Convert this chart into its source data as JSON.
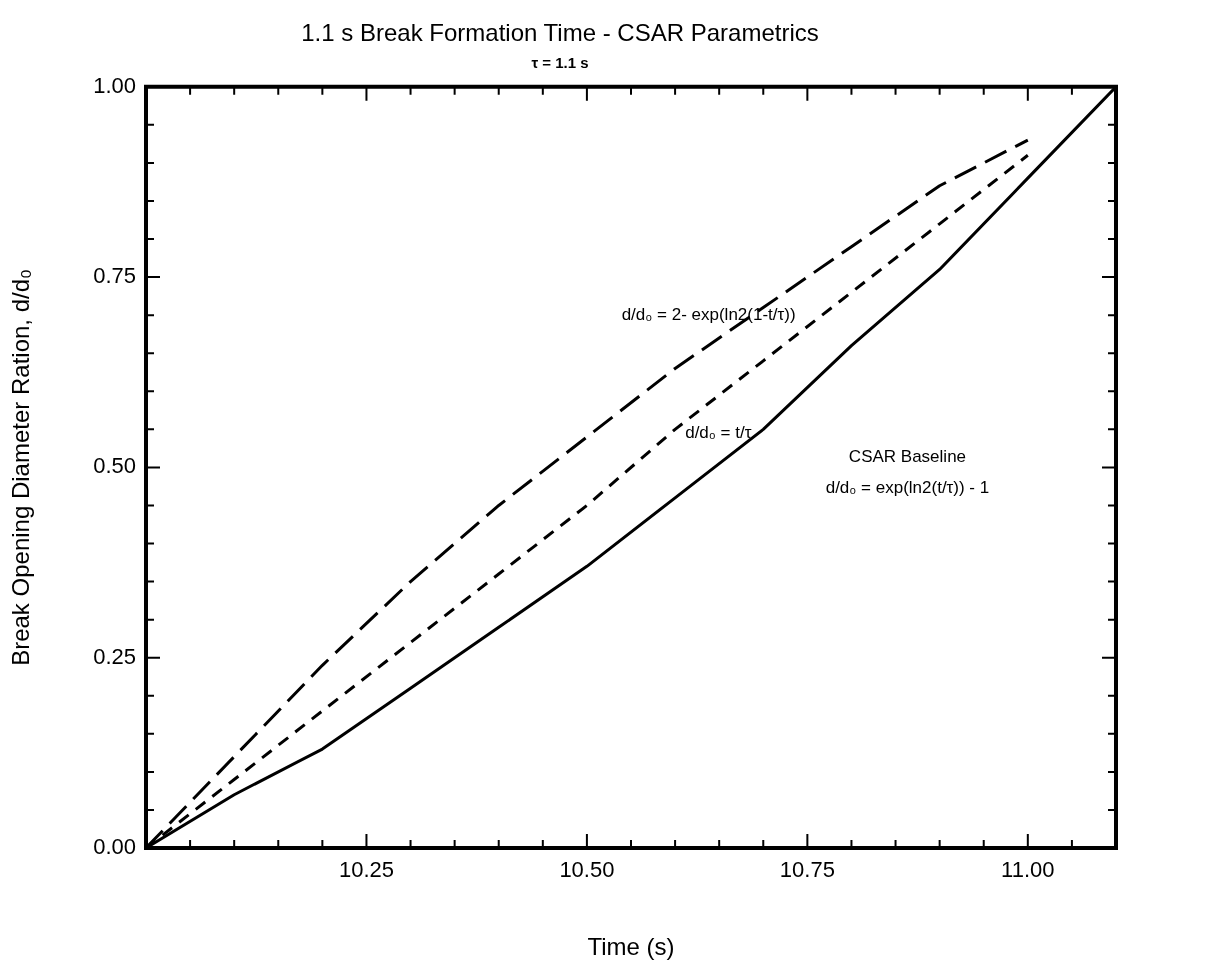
{
  "chart_data": {
    "type": "line",
    "title": "1.1 s Break Formation Time - CSAR Parametrics",
    "subtitle": "τ = 1.1 s",
    "xlabel": "Time (s)",
    "ylabel": "Break Opening Diameter Ration, d/d₀",
    "legend": false,
    "grid": false,
    "marker": "none",
    "series": [
      {
        "color": "#000000",
        "line_style": "dashed",
        "x": [
          10.0,
          10.1,
          10.2,
          10.3,
          10.4,
          10.5,
          10.6,
          10.7,
          10.8,
          10.9,
          11.0
        ],
        "values": [
          0,
          0.12,
          0.24,
          0.35,
          0.45,
          0.54,
          0.63,
          0.71,
          0.79,
          0.87,
          0.93
        ]
      },
      {
        "color": "#000000",
        "line_style": "dashed",
        "x": [
          10.0,
          10.1,
          10.2,
          10.3,
          10.4,
          10.5,
          10.6,
          10.7,
          10.8,
          10.9,
          11.0
        ],
        "values": [
          0,
          0.09,
          0.18,
          0.27,
          0.36,
          0.45,
          0.55,
          0.64,
          0.73,
          0.82,
          0.91
        ]
      },
      {
        "color": "#000000",
        "line_style": "solid",
        "x": [
          10.0,
          10.1,
          10.2,
          10.3,
          10.4,
          10.5,
          10.6,
          10.7,
          10.8,
          10.9,
          11.0,
          11.1
        ],
        "values": [
          0,
          0.07,
          0.13,
          0.21,
          0.29,
          0.37,
          0.46,
          0.55,
          0.66,
          0.76,
          0.88,
          1.0
        ]
      }
    ],
    "xlim": [
      10.0,
      11.1
    ],
    "xticks": [
      {
        "value": 10.0,
        "label": null
      },
      {
        "value": 10.05,
        "label": null
      },
      {
        "value": 10.1,
        "label": null
      },
      {
        "value": 10.15,
        "label": null
      },
      {
        "value": 10.2,
        "label": null
      },
      {
        "value": 10.25,
        "label": "10.25"
      },
      {
        "value": 10.3,
        "label": null
      },
      {
        "value": 10.35,
        "label": null
      },
      {
        "value": 10.4,
        "label": null
      },
      {
        "value": 10.45,
        "label": null
      },
      {
        "value": 10.5,
        "label": "10.50"
      },
      {
        "value": 10.55,
        "label": null
      },
      {
        "value": 10.6,
        "label": null
      },
      {
        "value": 10.65,
        "label": null
      },
      {
        "value": 10.7,
        "label": null
      },
      {
        "value": 10.75,
        "label": "10.75"
      },
      {
        "value": 10.8,
        "label": null
      },
      {
        "value": 10.85,
        "label": null
      },
      {
        "value": 10.9,
        "label": null
      },
      {
        "value": 10.95,
        "label": null
      },
      {
        "value": 11.0,
        "label": "11.00"
      },
      {
        "value": 11.05,
        "label": null
      },
      {
        "value": 11.1,
        "label": null
      }
    ],
    "ylim": [
      0,
      1
    ],
    "yticks": [
      {
        "value": 0,
        "label": "0.00"
      },
      {
        "value": 0.05,
        "label": null
      },
      {
        "value": 0.1,
        "label": null
      },
      {
        "value": 0.15,
        "label": null
      },
      {
        "value": 0.2,
        "label": null
      },
      {
        "value": 0.25,
        "label": "0.25"
      },
      {
        "value": 0.3,
        "label": null
      },
      {
        "value": 0.35,
        "label": null
      },
      {
        "value": 0.4,
        "label": null
      },
      {
        "value": 0.45,
        "label": null
      },
      {
        "value": 0.5,
        "label": "0.50"
      },
      {
        "value": 0.55,
        "label": null
      },
      {
        "value": 0.6,
        "label": null
      },
      {
        "value": 0.65,
        "label": null
      },
      {
        "value": 0.7,
        "label": null
      },
      {
        "value": 0.75,
        "label": "0.75"
      },
      {
        "value": 0.8,
        "label": null
      },
      {
        "value": 0.85,
        "label": null
      },
      {
        "value": 0.9,
        "label": null
      },
      {
        "value": 0.95,
        "label": null
      },
      {
        "value": 1.0,
        "label": "1.00"
      }
    ],
    "annotations": [
      "d/d₀ = 2- exp(ln2(1-t/τ))",
      "d/d₀ = t/τ",
      "CSAR Baseline",
      "d/d₀ = exp(ln2(t/τ)) - 1"
    ]
  }
}
